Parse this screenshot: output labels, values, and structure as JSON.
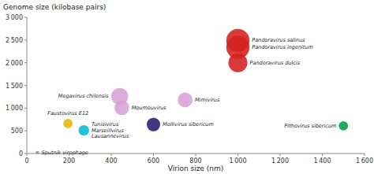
{
  "chart_data": {
    "type": "scatter",
    "x_label": "Virion size (nm)",
    "y_label": "Genome size (kilobase pairs)",
    "xlim": [
      0,
      1600
    ],
    "ylim": [
      0,
      3000
    ],
    "xticks": [
      0,
      200,
      400,
      600,
      800,
      {
        "value": 1000,
        "label": "1 000"
      },
      {
        "value": 1200,
        "label": "1 200"
      },
      {
        "value": 1400,
        "label": "1 400"
      },
      {
        "value": 1600,
        "label": "1 600"
      }
    ],
    "yticks": [
      0,
      500,
      {
        "value": 1000,
        "label": "1 000"
      },
      {
        "value": 1500,
        "label": "1 500"
      },
      {
        "value": 2000,
        "label": "2 000"
      },
      {
        "value": 2500,
        "label": "2 500"
      },
      {
        "value": 3000,
        "label": "3 000"
      }
    ],
    "grid": false,
    "labels": [
      "Pandoravirus salinus",
      "Pandoravirus ingenitum",
      "Pandoravirus dulcis",
      "Megavirus chilensis",
      "Mimivirus",
      "Moumouvirus",
      "Mollivirus sibericum",
      "Pithovirus sibericum",
      "Faustovirus E12",
      "Tunisivirus\nMarseillvirus\nLausannevirus",
      "Sputnik virophage"
    ],
    "x": [
      1000,
      1000,
      1000,
      440,
      750,
      450,
      600,
      1500,
      195,
      270,
      50
    ],
    "values": [
      2490,
      2340,
      2000,
      1260,
      1180,
      1010,
      640,
      610,
      660,
      510,
      18
    ],
    "sizes": [
      55,
      55,
      45,
      40,
      35,
      35,
      32,
      22,
      22,
      25,
      8
    ],
    "colors": [
      "#d42020",
      "#d42020",
      "#d42020",
      "#d8a0d8",
      "#d8a0d8",
      "#d8a0d8",
      "#2a1a6e",
      "#00a040",
      "#e8b800",
      "#00bcd4",
      "#888888"
    ]
  }
}
